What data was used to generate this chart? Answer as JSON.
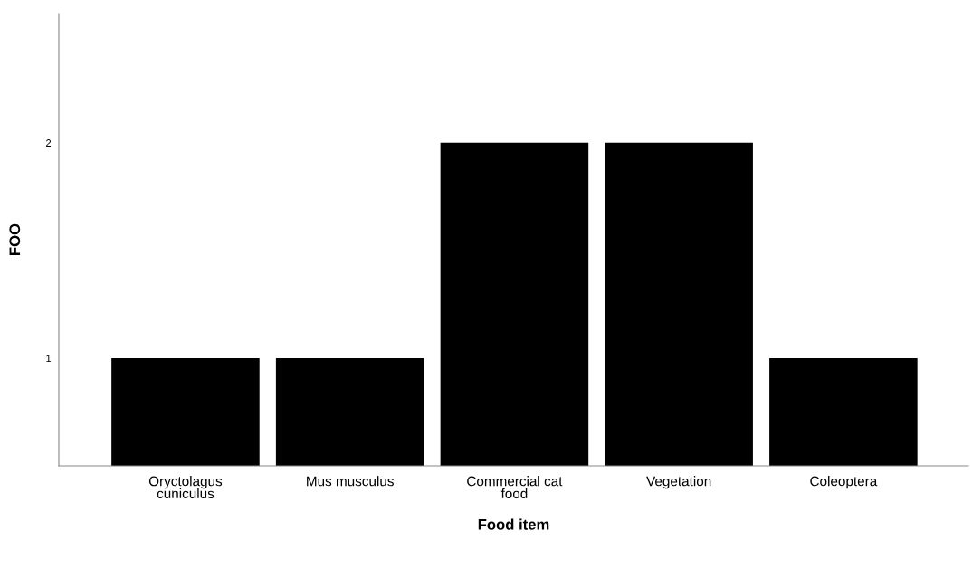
{
  "chart_data": {
    "type": "bar",
    "xlabel": "Food item",
    "ylabel": "FOO",
    "categories": [
      "Oryctolagus\ncuniculus",
      "Mus musculus",
      "Commercial cat\nfood",
      "Vegetation",
      "Coleoptera"
    ],
    "values": [
      1,
      1,
      2,
      2,
      1
    ],
    "color": "#000000",
    "ylim": [
      0.5,
      2.6
    ],
    "yticks": [
      1,
      2
    ],
    "grid": false,
    "legend": false
  }
}
